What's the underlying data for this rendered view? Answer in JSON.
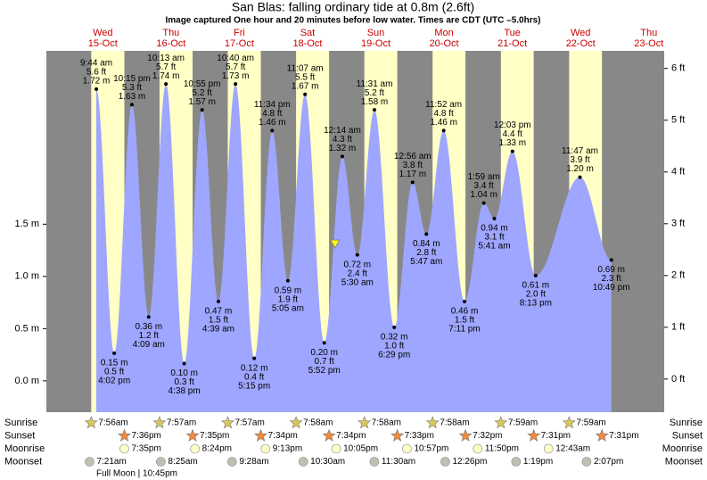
{
  "chart_data": {
    "type": "tide",
    "title": "San Blas: falling  ordinary tide at 0.8m (2.6ft)",
    "subtitle": "Image captured One hour and 20 minutes before low water. Times are CDT (UTC –5.0hrs)",
    "ylim": [
      -0.64,
      6.34
    ],
    "yticks": [
      {
        "value": 0,
        "label": "0 ft"
      },
      {
        "value": 1,
        "label": "1 ft"
      },
      {
        "value": 2,
        "label": "2 ft"
      },
      {
        "value": 3,
        "label": "3 ft"
      },
      {
        "value": 4,
        "label": "4 ft"
      },
      {
        "value": 5,
        "label": "5 ft"
      },
      {
        "value": 6,
        "label": "6 ft"
      }
    ],
    "y2lim": [
      -0.3,
      3.16
    ],
    "y2ticks": [
      {
        "value": 0,
        "label": "0.0 m"
      },
      {
        "value": 0.5,
        "label": "0.5 m"
      },
      {
        "value": 1,
        "label": "1.0 m"
      },
      {
        "value": 1.5,
        "label": "1.5 m"
      }
    ],
    "colors": {
      "area": "#9ea6ff",
      "night": "#888888",
      "day": "#ffffc6"
    },
    "current": {
      "value": 2.6
    },
    "row_labels": [
      "Sunrise",
      "Sunset",
      "Moonrise",
      "Moonset"
    ],
    "note": "Full Moon | 10:45pm",
    "days": [
      {
        "name": "Wed",
        "date": "15-Oct",
        "sunrise": "7:56am",
        "sunset": "7:36pm",
        "moonrise": "7:35pm",
        "moonset": "7:21am",
        "extremes": [
          {
            "time": "9:44 am",
            "value": 5.6,
            "value_label": "5.6 ft",
            "m": 1.72,
            "m_label": "1.72 m"
          },
          {
            "time": "4:02 pm",
            "value": 0.5,
            "value_label": "0.5 ft",
            "m": 0.15,
            "m_label": "0.15 m"
          },
          {
            "time": "10:15 pm",
            "value": 5.3,
            "value_label": "5.3 ft",
            "m": 1.63,
            "m_label": "1.63 m"
          }
        ]
      },
      {
        "name": "Thu",
        "date": "16-Oct",
        "sunrise": "7:57am",
        "sunset": "7:35pm",
        "moonrise": "8:24pm",
        "moonset": "8:25am",
        "extremes": [
          {
            "time": "4:09 am",
            "value": 1.2,
            "value_label": "1.2 ft",
            "m": 0.36,
            "m_label": "0.36 m"
          },
          {
            "time": "10:13 am",
            "value": 5.7,
            "value_label": "5.7 ft",
            "m": 1.74,
            "m_label": "1.74 m"
          },
          {
            "time": "4:38 pm",
            "value": 0.3,
            "value_label": "0.3 ft",
            "m": 0.1,
            "m_label": "0.10 m"
          },
          {
            "time": "10:55 pm",
            "value": 5.2,
            "value_label": "5.2 ft",
            "m": 1.57,
            "m_label": "1.57 m"
          }
        ]
      },
      {
        "name": "Fri",
        "date": "17-Oct",
        "sunrise": "7:57am",
        "sunset": "7:34pm",
        "moonrise": "9:13pm",
        "moonset": "9:28am",
        "extremes": [
          {
            "time": "4:39 am",
            "value": 1.5,
            "value_label": "1.5 ft",
            "m": 0.47,
            "m_label": "0.47 m"
          },
          {
            "time": "10:40 am",
            "value": 5.7,
            "value_label": "5.7 ft",
            "m": 1.73,
            "m_label": "1.73 m"
          },
          {
            "time": "5:15 pm",
            "value": 0.4,
            "value_label": "0.4 ft",
            "m": 0.12,
            "m_label": "0.12 m"
          },
          {
            "time": "11:34 pm",
            "value": 4.8,
            "value_label": "4.8 ft",
            "m": 1.46,
            "m_label": "1.46 m"
          }
        ]
      },
      {
        "name": "Sat",
        "date": "18-Oct",
        "sunrise": "7:58am",
        "sunset": "7:34pm",
        "moonrise": "10:05pm",
        "moonset": "10:30am",
        "extremes": [
          {
            "time": "5:05 am",
            "value": 1.9,
            "value_label": "1.9 ft",
            "m": 0.59,
            "m_label": "0.59 m"
          },
          {
            "time": "11:07 am",
            "value": 5.5,
            "value_label": "5.5 ft",
            "m": 1.67,
            "m_label": "1.67 m"
          },
          {
            "time": "5:52 pm",
            "value": 0.7,
            "value_label": "0.7 ft",
            "m": 0.2,
            "m_label": "0.20 m"
          }
        ]
      },
      {
        "name": "Sun",
        "date": "19-Oct",
        "sunrise": "7:58am",
        "sunset": "7:33pm",
        "moonrise": "10:57pm",
        "moonset": "11:30am",
        "extremes": [
          {
            "time": "12:14 am",
            "value": 4.3,
            "value_label": "4.3 ft",
            "m": 1.32,
            "m_label": "1.32 m"
          },
          {
            "time": "5:30 am",
            "value": 2.4,
            "value_label": "2.4 ft",
            "m": 0.72,
            "m_label": "0.72 m"
          },
          {
            "time": "11:31 am",
            "value": 5.2,
            "value_label": "5.2 ft",
            "m": 1.58,
            "m_label": "1.58 m"
          },
          {
            "time": "6:29 pm",
            "value": 1.0,
            "value_label": "1.0 ft",
            "m": 0.32,
            "m_label": "0.32 m"
          }
        ]
      },
      {
        "name": "Mon",
        "date": "20-Oct",
        "sunrise": "7:58am",
        "sunset": "7:32pm",
        "moonrise": "11:50pm",
        "moonset": "12:26pm",
        "extremes": [
          {
            "time": "12:56 am",
            "value": 3.8,
            "value_label": "3.8 ft",
            "m": 1.17,
            "m_label": "1.17 m"
          },
          {
            "time": "5:47 am",
            "value": 2.8,
            "value_label": "2.8 ft",
            "m": 0.84,
            "m_label": "0.84 m"
          },
          {
            "time": "11:52 am",
            "value": 4.8,
            "value_label": "4.8 ft",
            "m": 1.46,
            "m_label": "1.46 m"
          },
          {
            "time": "7:11 pm",
            "value": 1.5,
            "value_label": "1.5 ft",
            "m": 0.46,
            "m_label": "0.46 m"
          }
        ]
      },
      {
        "name": "Tue",
        "date": "21-Oct",
        "sunrise": "7:59am",
        "sunset": "7:31pm",
        "moonset": "1:19pm",
        "extremes": [
          {
            "time": "1:59 am",
            "value": 3.4,
            "value_label": "3.4 ft",
            "m": 1.04,
            "m_label": "1.04 m"
          },
          {
            "time": "5:41 am",
            "value": 3.1,
            "value_label": "3.1 ft",
            "m": 0.94,
            "m_label": "0.94 m"
          },
          {
            "time": "12:03 pm",
            "value": 4.4,
            "value_label": "4.4 ft",
            "m": 1.33,
            "m_label": "1.33 m"
          },
          {
            "time": "8:13 pm",
            "value": 2.0,
            "value_label": "2.0 ft",
            "m": 0.61,
            "m_label": "0.61 m"
          }
        ]
      },
      {
        "name": "Wed",
        "date": "22-Oct",
        "sunrise": "7:59am",
        "sunset": "7:31pm",
        "moonrise": "12:43am",
        "moonset": "2:07pm",
        "extremes": [
          {
            "time": "11:47 am",
            "value": 3.9,
            "value_label": "3.9 ft",
            "m": 1.2,
            "m_label": "1.20 m"
          },
          {
            "time": "10:49 pm",
            "value": 2.3,
            "value_label": "2.3 ft",
            "m": 0.69,
            "m_label": "0.69 m"
          }
        ]
      },
      {
        "name": "Thu",
        "date": "23-Oct"
      }
    ]
  }
}
